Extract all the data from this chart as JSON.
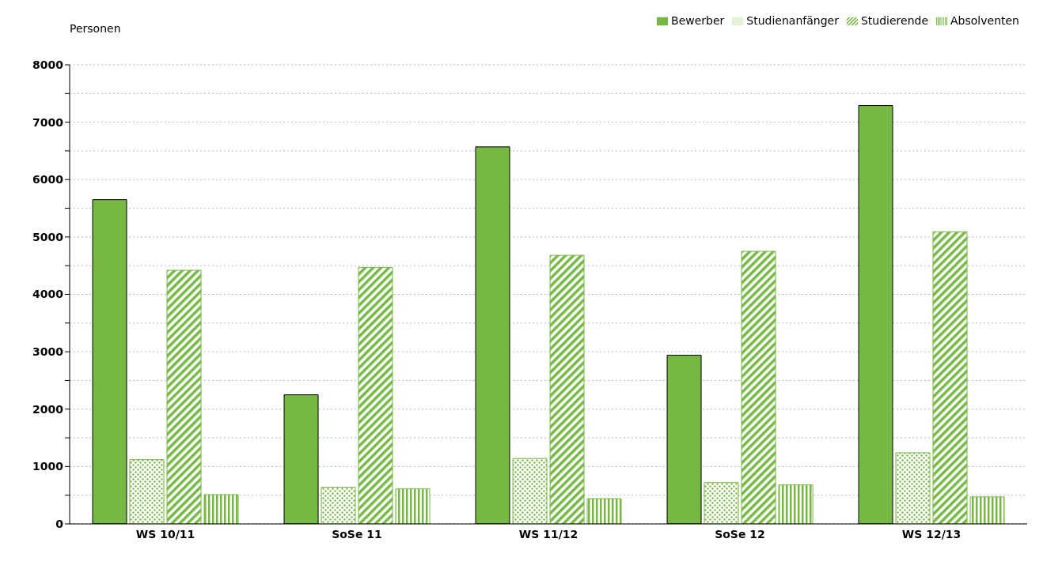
{
  "chart_data": {
    "type": "bar",
    "ylabel": "Personen",
    "categories": [
      "WS 10/11",
      "SoSe 11",
      "WS 11/12",
      "SoSe 12",
      "WS 12/13"
    ],
    "series": [
      {
        "name": "Bewerber",
        "color": "#76b843",
        "values": [
          5650,
          2250,
          6570,
          2940,
          7290
        ]
      },
      {
        "name": "Studienanfänger",
        "color": "#76b843",
        "values": [
          1120,
          640,
          1140,
          720,
          1240
        ]
      },
      {
        "name": "Studierende",
        "color": "#76b843",
        "values": [
          4420,
          4470,
          4680,
          4750,
          5090
        ]
      },
      {
        "name": "Absolventen",
        "color": "#76b843",
        "values": [
          510,
          610,
          440,
          680,
          470
        ]
      }
    ],
    "ylim": [
      0,
      8000
    ],
    "yticks": [
      0,
      {
        "value": 500,
        "label": null
      },
      1000,
      {
        "value": 1500,
        "label": null
      },
      2000,
      {
        "value": 2500,
        "label": null
      },
      3000,
      {
        "value": 3500,
        "label": null
      },
      4000,
      {
        "value": 4500,
        "label": null
      },
      5000,
      {
        "value": 5500,
        "label": null
      },
      6000,
      {
        "value": 6500,
        "label": null
      },
      7000,
      {
        "value": 7500,
        "label": null
      },
      8000
    ],
    "grid": "y",
    "legend": "top right"
  }
}
